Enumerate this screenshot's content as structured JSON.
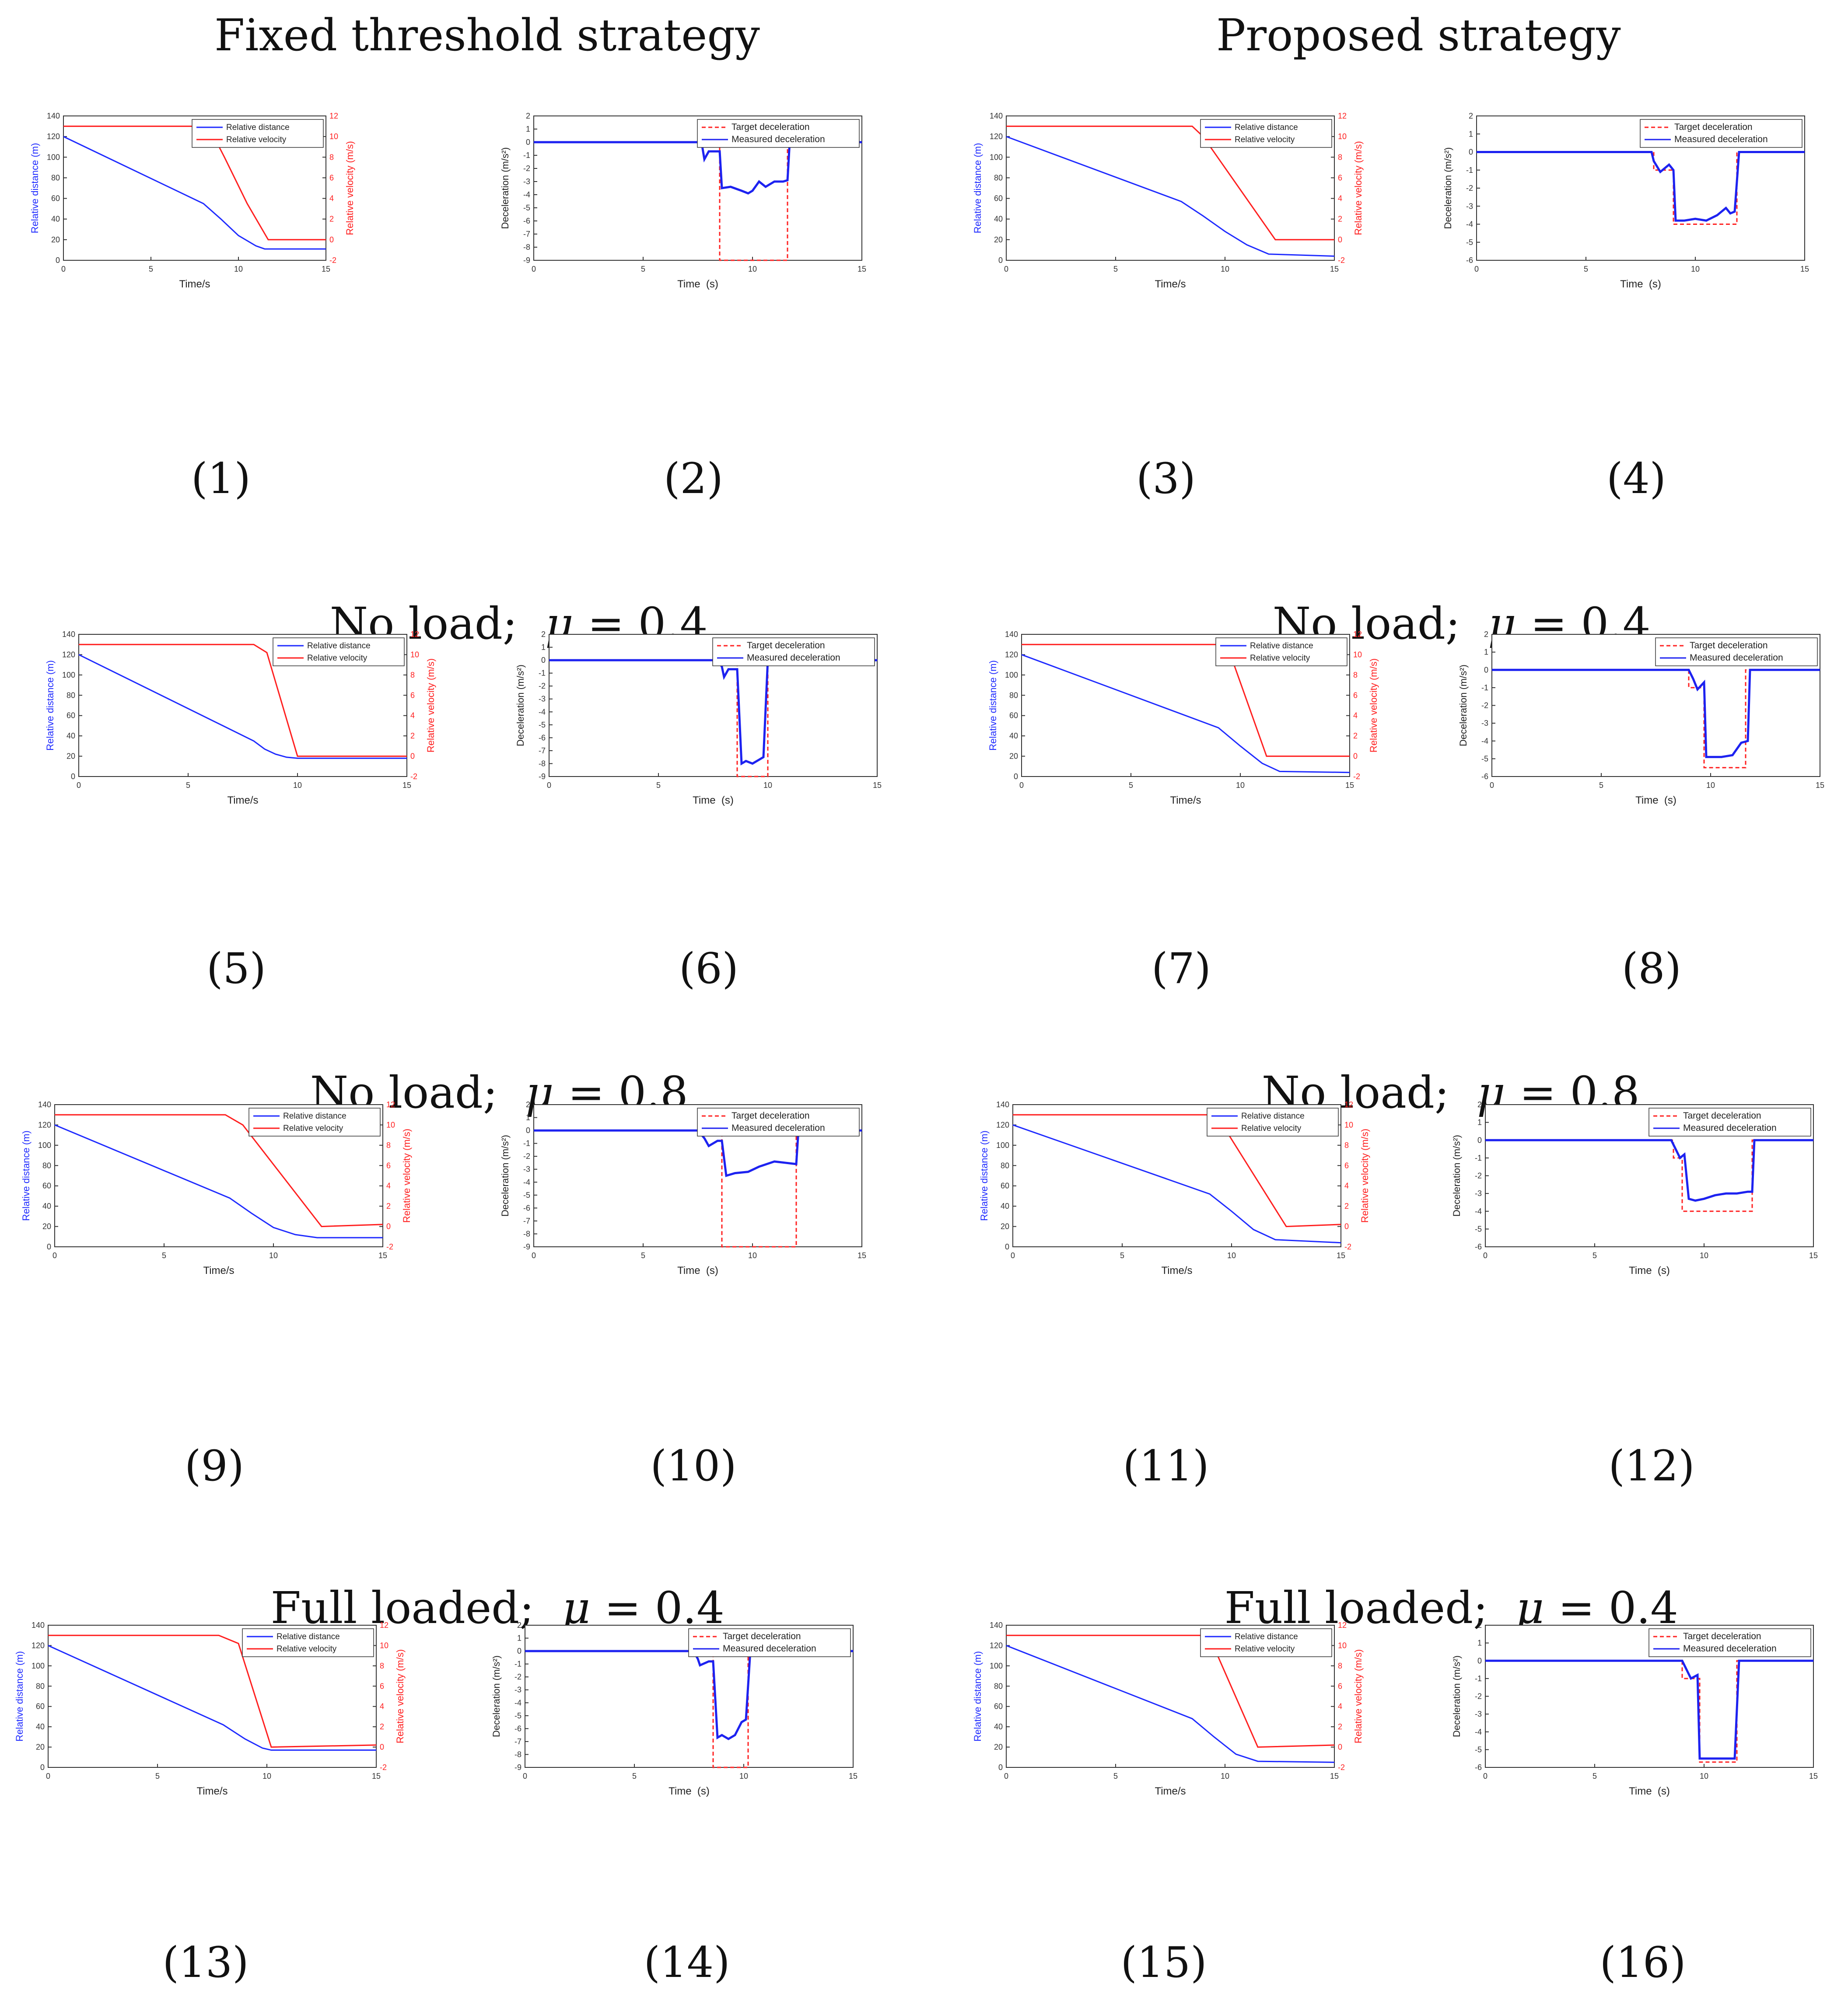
{
  "headings": {
    "fixed": "Fixed threshold strategy",
    "proposed": "Proposed strategy",
    "row2": {
      "text": "No load;",
      "mu_symbol": "μ",
      "mu_value": "= 0.4"
    },
    "row3": {
      "text": "No load;",
      "mu_symbol": "μ",
      "mu_value": "= 0.8"
    },
    "row4": {
      "text": "Full loaded;",
      "mu_symbol": "μ",
      "mu_value": "= 0.4"
    }
  },
  "captions": [
    "(1)",
    "(2)",
    "(3)",
    "(4)",
    "(5)",
    "(6)",
    "(7)",
    "(8)",
    "(9)",
    "(10)",
    "(11)",
    "(12)",
    "(13)",
    "(14)",
    "(15)",
    "(16)"
  ],
  "common": {
    "time_s": "Time/s",
    "time_paren": "Time  (s)",
    "rel_dist": "Relative distance (m)",
    "rel_vel": "Relative velocity (m/s)",
    "decel_ylabel": "Deceleration (m/s²)",
    "legend_dist": "Relative distance",
    "legend_vel": "Relative velocity",
    "legend_target": "Target deceleration",
    "legend_measured": "Measured deceleration",
    "dist_ticks": [
      "0",
      "20",
      "40",
      "60",
      "80",
      "100",
      "120",
      "140"
    ],
    "vel_ticks": [
      "-2",
      "0",
      "2",
      "4",
      "6",
      "8",
      "10",
      "12"
    ],
    "x_ticks": [
      "0",
      "5",
      "10",
      "15"
    ],
    "decel_ticks_9": [
      "2",
      "1",
      "0",
      "-1",
      "-2",
      "-3",
      "-4",
      "-5",
      "-6",
      "-7",
      "-8",
      "-9"
    ],
    "decel_ticks_6": [
      "2",
      "1",
      "0",
      "-1",
      "-2",
      "-3",
      "-4",
      "-5",
      "-6"
    ]
  },
  "colors": {
    "distance": "#1f2bff",
    "velocity": "#ff1f1f",
    "target": "#ff2222",
    "measured": "#1d22f0"
  },
  "chart_data": [
    {
      "id": 1,
      "type": "line",
      "xlabel": "Time/s",
      "ylabel": "Relative distance (m)",
      "y2label": "Relative velocity (m/s)",
      "xlim": [
        0,
        15
      ],
      "ylim": [
        0,
        140
      ],
      "y2lim": [
        -2,
        12
      ],
      "series": [
        {
          "name": "Relative distance",
          "x": [
            0,
            8,
            9,
            10,
            11,
            11.5,
            15
          ],
          "y": [
            120,
            55,
            40,
            24,
            14,
            11,
            11
          ]
        },
        {
          "name": "Relative velocity",
          "axis": "right",
          "x": [
            0,
            7.8,
            8.5,
            9.2,
            10.5,
            11.7,
            15
          ],
          "y": [
            11,
            11,
            10.3,
            8,
            3.5,
            0,
            0
          ]
        }
      ]
    },
    {
      "id": 2,
      "type": "line",
      "xlabel": "Time (s)",
      "ylabel": "Deceleration (m/s²)",
      "xlim": [
        0,
        15
      ],
      "ylim": [
        -9,
        2
      ],
      "series": [
        {
          "name": "Target deceleration",
          "x": [
            0,
            8.5,
            8.5,
            11.6,
            11.6,
            15
          ],
          "y": [
            0,
            0,
            -9,
            -9,
            0,
            0
          ]
        },
        {
          "name": "Measured deceleration",
          "x": [
            0,
            7.5,
            7.7,
            7.8,
            8.0,
            8.5,
            8.6,
            9.0,
            9.5,
            9.8,
            10.0,
            10.3,
            10.6,
            11.0,
            11.4,
            11.6,
            11.7,
            15
          ],
          "y": [
            0,
            0,
            -0.3,
            -1.3,
            -0.7,
            -0.7,
            -3.5,
            -3.4,
            -3.7,
            -3.9,
            -3.7,
            -3.0,
            -3.4,
            -3.0,
            -3.0,
            -2.9,
            0,
            0
          ]
        }
      ]
    },
    {
      "id": 3,
      "type": "line",
      "xlabel": "Time/s",
      "ylabel": "Relative distance (m)",
      "y2label": "Relative velocity (m/s)",
      "xlim": [
        0,
        15
      ],
      "ylim": [
        0,
        140
      ],
      "y2lim": [
        -2,
        12
      ],
      "series": [
        {
          "name": "Relative distance",
          "x": [
            0,
            8,
            9,
            10,
            11,
            12,
            15
          ],
          "y": [
            120,
            57,
            43,
            28,
            15,
            6,
            4
          ]
        },
        {
          "name": "Relative velocity",
          "axis": "right",
          "x": [
            0,
            8.5,
            9,
            12.3,
            15
          ],
          "y": [
            11,
            11,
            10,
            0,
            0
          ]
        }
      ]
    },
    {
      "id": 4,
      "type": "line",
      "xlabel": "Time (s)",
      "ylabel": "Deceleration (m/s²)",
      "xlim": [
        0,
        15
      ],
      "ylim": [
        -6,
        2
      ],
      "series": [
        {
          "name": "Target deceleration",
          "x": [
            0,
            8.1,
            8.1,
            9,
            9,
            11.9,
            11.9,
            15
          ],
          "y": [
            0,
            0,
            -1,
            -1,
            -4,
            -4,
            0,
            0
          ]
        },
        {
          "name": "Measured deceleration",
          "x": [
            0,
            8.0,
            8.1,
            8.4,
            8.8,
            9.0,
            9.1,
            9.5,
            10,
            10.5,
            11,
            11.2,
            11.4,
            11.6,
            11.8,
            12,
            15
          ],
          "y": [
            0,
            0,
            -0.5,
            -1.1,
            -0.7,
            -1.0,
            -3.8,
            -3.8,
            -3.7,
            -3.8,
            -3.5,
            -3.3,
            -3.1,
            -3.4,
            -3.3,
            0,
            0
          ]
        }
      ]
    },
    {
      "id": 5,
      "type": "line",
      "xlabel": "Time/s",
      "ylabel": "Relative distance (m)",
      "y2label": "Relative velocity (m/s)",
      "xlim": [
        0,
        15
      ],
      "ylim": [
        0,
        140
      ],
      "y2lim": [
        -2,
        12
      ],
      "series": [
        {
          "name": "Relative distance",
          "x": [
            0,
            8,
            8.5,
            9,
            9.5,
            10,
            15
          ],
          "y": [
            120,
            35,
            27,
            22,
            19,
            18,
            18
          ]
        },
        {
          "name": "Relative velocity",
          "axis": "right",
          "x": [
            0,
            8,
            8.6,
            10,
            15
          ],
          "y": [
            11,
            11,
            10.2,
            0,
            0
          ]
        }
      ]
    },
    {
      "id": 6,
      "type": "line",
      "xlabel": "Time (s)",
      "ylabel": "Deceleration (m/s²)",
      "xlim": [
        0,
        15
      ],
      "ylim": [
        -9,
        2
      ],
      "series": [
        {
          "name": "Target deceleration",
          "x": [
            0,
            8.6,
            8.6,
            10,
            10,
            15
          ],
          "y": [
            0,
            0,
            -9,
            -9,
            0,
            0
          ]
        },
        {
          "name": "Measured deceleration",
          "x": [
            0,
            7.7,
            7.9,
            8.0,
            8.2,
            8.6,
            8.8,
            9.0,
            9.3,
            9.6,
            9.8,
            10,
            15
          ],
          "y": [
            0,
            0,
            -0.5,
            -1.3,
            -0.7,
            -0.7,
            -8,
            -7.8,
            -8,
            -7.7,
            -7.5,
            0,
            0
          ]
        }
      ]
    },
    {
      "id": 7,
      "type": "line",
      "xlabel": "Time/s",
      "ylabel": "Relative distance (m)",
      "y2label": "Relative velocity (m/s)",
      "xlim": [
        0,
        15
      ],
      "ylim": [
        0,
        140
      ],
      "y2lim": [
        -2,
        12
      ],
      "series": [
        {
          "name": "Relative distance",
          "x": [
            0,
            9,
            10,
            11,
            11.8,
            15
          ],
          "y": [
            120,
            48,
            30,
            13,
            5,
            4
          ]
        },
        {
          "name": "Relative velocity",
          "axis": "right",
          "x": [
            0,
            9,
            9.5,
            11.2,
            15
          ],
          "y": [
            11,
            11,
            10.3,
            0,
            0
          ]
        }
      ]
    },
    {
      "id": 8,
      "type": "line",
      "xlabel": "Time (s)",
      "ylabel": "Deceleration (m/s²)",
      "xlim": [
        0,
        15
      ],
      "ylim": [
        -6,
        2
      ],
      "series": [
        {
          "name": "Target deceleration",
          "x": [
            0,
            9,
            9,
            9.7,
            9.7,
            11.6,
            11.6,
            15
          ],
          "y": [
            0,
            0,
            -1,
            -1,
            -5.5,
            -5.5,
            0,
            0
          ]
        },
        {
          "name": "Measured deceleration",
          "x": [
            0,
            9,
            9.2,
            9.4,
            9.7,
            9.8,
            10,
            10.5,
            11,
            11.4,
            11.7,
            11.8,
            15
          ],
          "y": [
            0,
            0,
            -0.5,
            -1.1,
            -0.7,
            -4.9,
            -4.9,
            -4.9,
            -4.8,
            -4.1,
            -4.0,
            0,
            0
          ]
        }
      ]
    },
    {
      "id": 9,
      "type": "line",
      "xlabel": "Time/s",
      "ylabel": "Relative distance (m)",
      "y2label": "Relative velocity (m/s)",
      "xlim": [
        0,
        15
      ],
      "ylim": [
        0,
        140
      ],
      "y2lim": [
        -2,
        12
      ],
      "series": [
        {
          "name": "Relative distance",
          "x": [
            0,
            8,
            9,
            10,
            11,
            12,
            15
          ],
          "y": [
            120,
            48,
            33,
            19,
            12,
            9,
            9
          ]
        },
        {
          "name": "Relative velocity",
          "axis": "right",
          "x": [
            0,
            7.8,
            8.6,
            12.2,
            15
          ],
          "y": [
            11,
            11,
            10,
            0,
            0.2
          ]
        }
      ]
    },
    {
      "id": 10,
      "type": "line",
      "xlabel": "Time (s)",
      "ylabel": "Deceleration (m/s²)",
      "xlim": [
        0,
        15
      ],
      "ylim": [
        -9,
        2
      ],
      "series": [
        {
          "name": "Target deceleration",
          "x": [
            0,
            8.6,
            8.6,
            12,
            12,
            15
          ],
          "y": [
            0,
            0,
            -9,
            -9,
            0,
            0
          ]
        },
        {
          "name": "Measured deceleration",
          "x": [
            0,
            7.5,
            7.8,
            8.0,
            8.4,
            8.6,
            8.8,
            9.2,
            9.8,
            10.3,
            11,
            11.5,
            12,
            12.1,
            15
          ],
          "y": [
            0,
            0,
            -0.6,
            -1.2,
            -0.8,
            -0.8,
            -3.5,
            -3.3,
            -3.2,
            -2.8,
            -2.4,
            -2.5,
            -2.6,
            0,
            0
          ]
        }
      ]
    },
    {
      "id": 11,
      "type": "line",
      "xlabel": "Time/s",
      "ylabel": "Relative distance (m)",
      "y2label": "Relative velocity (m/s)",
      "xlim": [
        0,
        15
      ],
      "ylim": [
        0,
        140
      ],
      "y2lim": [
        -2,
        12
      ],
      "series": [
        {
          "name": "Relative distance",
          "x": [
            0,
            9,
            10,
            11,
            12,
            15
          ],
          "y": [
            120,
            52,
            35,
            17,
            7,
            4
          ]
        },
        {
          "name": "Relative velocity",
          "axis": "right",
          "x": [
            0,
            9,
            9.5,
            12.5,
            15
          ],
          "y": [
            11,
            11,
            10.3,
            0,
            0.2
          ]
        }
      ]
    },
    {
      "id": 12,
      "type": "line",
      "xlabel": "Time (s)",
      "ylabel": "Deceleration (m/s²)",
      "xlim": [
        0,
        15
      ],
      "ylim": [
        -6,
        2
      ],
      "series": [
        {
          "name": "Target deceleration",
          "x": [
            0,
            8.6,
            8.6,
            9,
            9,
            12.2,
            12.2,
            15
          ],
          "y": [
            0,
            0,
            -1,
            -1,
            -4,
            -4,
            0,
            0
          ]
        },
        {
          "name": "Measured deceleration",
          "x": [
            0,
            8.5,
            8.7,
            8.9,
            9.1,
            9.3,
            9.6,
            10,
            10.5,
            11,
            11.5,
            12,
            12.2,
            12.3,
            15
          ],
          "y": [
            0,
            0,
            -0.5,
            -1.0,
            -0.8,
            -3.3,
            -3.4,
            -3.3,
            -3.1,
            -3.0,
            -3.0,
            -2.9,
            -2.9,
            0,
            0
          ]
        }
      ]
    },
    {
      "id": 13,
      "type": "line",
      "xlabel": "Time/s",
      "ylabel": "Relative distance (m)",
      "y2label": "Relative velocity (m/s)",
      "xlim": [
        0,
        15
      ],
      "ylim": [
        0,
        140
      ],
      "y2lim": [
        -2,
        12
      ],
      "series": [
        {
          "name": "Relative distance",
          "x": [
            0,
            8,
            9,
            9.8,
            10.2,
            15
          ],
          "y": [
            120,
            42,
            28,
            19,
            17,
            17
          ]
        },
        {
          "name": "Relative velocity",
          "axis": "right",
          "x": [
            0,
            7.8,
            8.7,
            10.2,
            15
          ],
          "y": [
            11,
            11,
            10.2,
            0,
            0.2
          ]
        }
      ]
    },
    {
      "id": 14,
      "type": "line",
      "xlabel": "Time (s)",
      "ylabel": "Deceleration (m/s²)",
      "xlim": [
        0,
        15
      ],
      "ylim": [
        -9,
        2
      ],
      "series": [
        {
          "name": "Target deceleration",
          "x": [
            0,
            8.6,
            8.6,
            10.2,
            10.2,
            15
          ],
          "y": [
            0,
            0,
            -9,
            -9,
            0,
            0
          ]
        },
        {
          "name": "Measured deceleration",
          "x": [
            0,
            7.7,
            7.9,
            8.0,
            8.4,
            8.6,
            8.8,
            9.0,
            9.3,
            9.6,
            9.9,
            10.1,
            10.3,
            15
          ],
          "y": [
            0,
            0,
            -0.6,
            -1.1,
            -0.8,
            -0.8,
            -6.7,
            -6.5,
            -6.8,
            -6.5,
            -5.5,
            -5.3,
            0,
            0
          ]
        }
      ]
    },
    {
      "id": 15,
      "type": "line",
      "xlabel": "Time/s",
      "ylabel": "Relative distance (m)",
      "y2label": "Relative velocity (m/s)",
      "xlim": [
        0,
        15
      ],
      "ylim": [
        0,
        140
      ],
      "y2lim": [
        -2,
        12
      ],
      "series": [
        {
          "name": "Relative distance",
          "x": [
            0,
            8.5,
            9.5,
            10.5,
            11.5,
            15
          ],
          "y": [
            120,
            48,
            30,
            13,
            6,
            5
          ]
        },
        {
          "name": "Relative velocity",
          "axis": "right",
          "x": [
            0,
            9.1,
            9.4,
            11.5,
            15
          ],
          "y": [
            11,
            11,
            10.3,
            0,
            0.2
          ]
        }
      ]
    },
    {
      "id": 16,
      "type": "line",
      "xlabel": "Time (s)",
      "ylabel": "Deceleration (m/s²)",
      "xlim": [
        0,
        15
      ],
      "ylim": [
        -6,
        2
      ],
      "series": [
        {
          "name": "Target deceleration",
          "x": [
            0,
            9,
            9,
            9.8,
            9.8,
            11.5,
            11.5,
            15
          ],
          "y": [
            0,
            0,
            -1,
            -1,
            -5.7,
            -5.7,
            0,
            0
          ]
        },
        {
          "name": "Measured deceleration",
          "x": [
            0,
            9,
            9.2,
            9.4,
            9.7,
            9.8,
            10,
            10.5,
            11,
            11.4,
            11.6,
            15
          ],
          "y": [
            0,
            0,
            -0.5,
            -1.0,
            -0.8,
            -5.5,
            -5.5,
            -5.5,
            -5.5,
            -5.5,
            0,
            0
          ]
        }
      ]
    }
  ]
}
